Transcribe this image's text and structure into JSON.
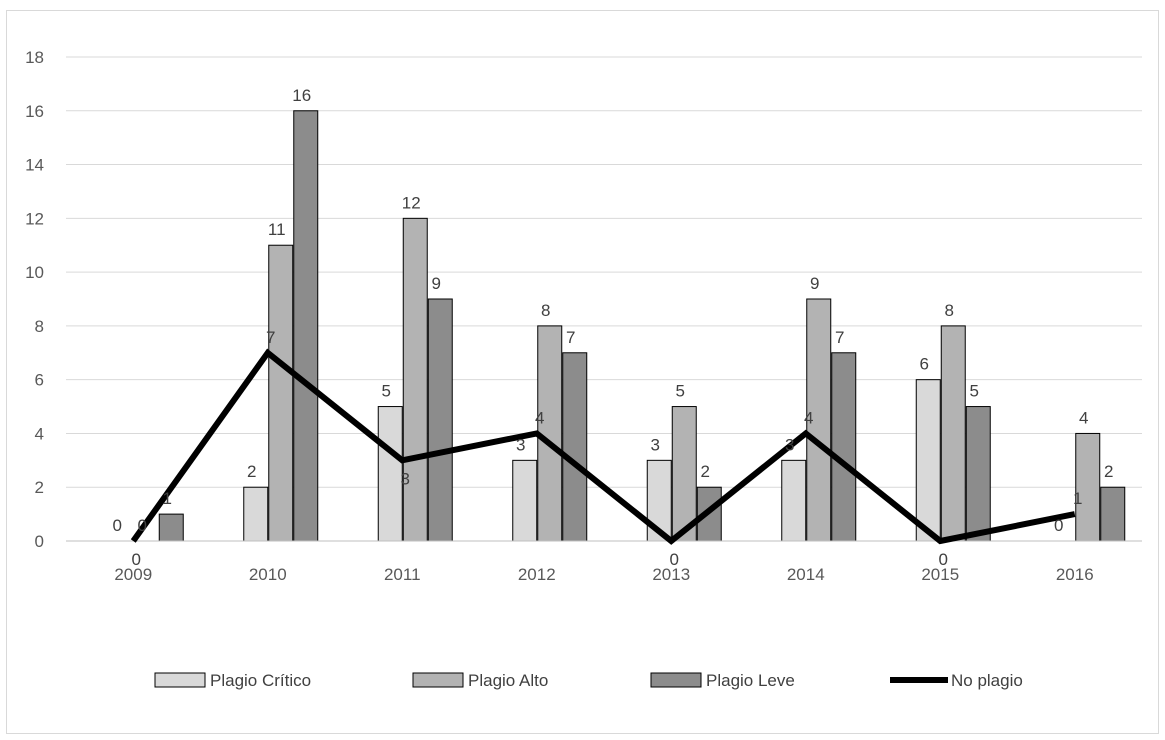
{
  "chart_data": {
    "type": "bar",
    "categories": [
      "2009",
      "2010",
      "2011",
      "2012",
      "2013",
      "2014",
      "2015",
      "2016"
    ],
    "series": [
      {
        "name": "Plagio Crítico",
        "kind": "bar",
        "color": "#d9d9d9",
        "values": [
          0,
          2,
          5,
          3,
          3,
          3,
          6,
          0
        ]
      },
      {
        "name": "Plagio Alto",
        "kind": "bar",
        "color": "#b3b3b3",
        "values": [
          0,
          11,
          12,
          8,
          5,
          9,
          8,
          4
        ]
      },
      {
        "name": "Plagio Leve",
        "kind": "bar",
        "color": "#8c8c8c",
        "values": [
          1,
          16,
          9,
          7,
          2,
          7,
          5,
          2
        ]
      },
      {
        "name": "No plagio",
        "kind": "line",
        "color": "#000000",
        "values": [
          0,
          7,
          3,
          4,
          0,
          4,
          0,
          1
        ]
      }
    ],
    "ylim": [
      0,
      18
    ],
    "yticks": [
      "0",
      "2",
      "4",
      "6",
      "8",
      "10",
      "12",
      "14",
      "16",
      "18"
    ],
    "grid": true,
    "legend_position": "bottom"
  }
}
